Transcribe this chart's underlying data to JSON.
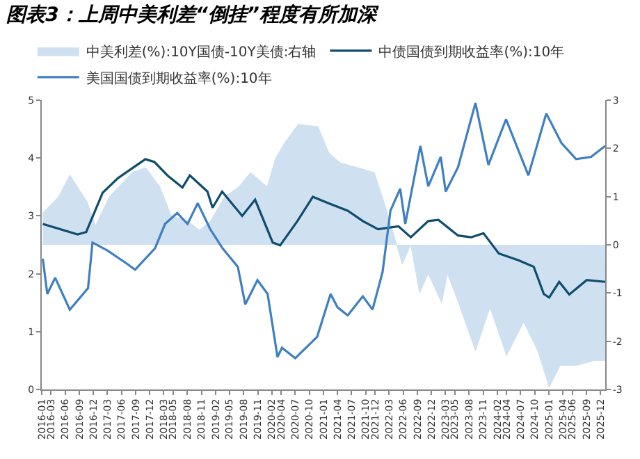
{
  "chart_data": {
    "type": "line",
    "title": "图表3：上周中美利差“倒挂”程度有所加深",
    "series": [
      {
        "name": "中美利差(%):10Y国债-10Y美债:右轴",
        "type": "area",
        "axis": "y2",
        "color": "#cfe0f1",
        "x": [
          "2016-01-08",
          "2016-04-20",
          "2016-07-01",
          "2016-10-20",
          "2016-12-15",
          "2017-03-15",
          "2017-08-10",
          "2017-11-05",
          "2018-02-05",
          "2018-04-20",
          "2018-08-01",
          "2018-10-20",
          "2019-01-01",
          "2019-04-01",
          "2019-07-01",
          "2019-09-15",
          "2020-01-01",
          "2020-02-25",
          "2020-04-20",
          "2020-07-20",
          "2020-11-25",
          "2021-02-05",
          "2021-04-20",
          "2021-08-10",
          "2021-11-25",
          "2022-02-05",
          "2022-04-20",
          "2022-05-25",
          "2022-07-20",
          "2022-09-15",
          "2022-11-10",
          "2023-02-05",
          "2023-03-15",
          "2023-05-25",
          "2023-09-12",
          "2023-12-15",
          "2024-04-01",
          "2024-07-20",
          "2024-10-20",
          "2025-01-02",
          "2025-03-15",
          "2025-07-01",
          "2025-10-20",
          "2025-12-31"
        ],
        "values": [
          0.66,
          1.0,
          1.45,
          0.9,
          0.4,
          1.0,
          1.5,
          1.6,
          1.2,
          0.6,
          0.5,
          0.3,
          0.5,
          1.0,
          1.2,
          1.5,
          1.2,
          1.8,
          2.1,
          2.5,
          2.45,
          1.9,
          1.7,
          1.6,
          1.5,
          0.8,
          0.0,
          -0.4,
          0.0,
          -1.0,
          -0.6,
          -1.2,
          -0.6,
          -1.2,
          -2.2,
          -1.3,
          -2.3,
          -1.6,
          -2.2,
          -2.95,
          -2.5,
          -2.5,
          -2.4,
          -2.4
        ]
      },
      {
        "name": "中债国债到期收益率(%):10年",
        "color": "#0e4d6e",
        "x": [
          "2016-01-08",
          "2016-08-20",
          "2016-10-15",
          "2017-01-30",
          "2017-05-08",
          "2017-11-03",
          "2018-01-01",
          "2018-03-25",
          "2018-07-01",
          "2018-08-18",
          "2018-12-10",
          "2019-01-12",
          "2019-03-15",
          "2019-07-23",
          "2019-10-15",
          "2020-02-06",
          "2020-03-25",
          "2020-07-15",
          "2020-10-23",
          "2021-01-30",
          "2021-06-06",
          "2021-09-12",
          "2021-12-20",
          "2022-05-01",
          "2022-07-20",
          "2022-11-10",
          "2023-01-15",
          "2023-05-22",
          "2023-08-15",
          "2023-11-03",
          "2024-02-10",
          "2024-06-20",
          "2024-09-24",
          "2024-11-28",
          "2025-01-02",
          "2025-03-08",
          "2025-05-12",
          "2025-09-02",
          "2025-12-31"
        ],
        "values": [
          2.86,
          2.68,
          2.72,
          3.4,
          3.65,
          3.98,
          3.93,
          3.7,
          3.49,
          3.7,
          3.42,
          3.14,
          3.42,
          3.0,
          3.28,
          2.54,
          2.49,
          2.91,
          3.33,
          3.22,
          3.09,
          2.91,
          2.77,
          2.82,
          2.63,
          2.91,
          2.93,
          2.66,
          2.63,
          2.7,
          2.35,
          2.23,
          2.12,
          1.65,
          1.59,
          1.86,
          1.64,
          1.89,
          1.86
        ]
      },
      {
        "name": "美国国债到期收益率(%):10年",
        "color": "#3f7fc1",
        "x": [
          "2016-01-08",
          "2016-02-06",
          "2016-03-28",
          "2016-07-01",
          "2016-10-27",
          "2016-11-25",
          "2017-03-03",
          "2017-07-08",
          "2017-08-28",
          "2018-01-04",
          "2018-03-10",
          "2018-05-28",
          "2018-08-03",
          "2018-10-08",
          "2018-12-28",
          "2019-03-18",
          "2019-06-25",
          "2019-08-12",
          "2019-10-30",
          "2020-01-04",
          "2020-03-08",
          "2020-04-06",
          "2020-07-01",
          "2020-11-20",
          "2021-02-15",
          "2021-04-01",
          "2021-06-06",
          "2021-09-12",
          "2021-11-14",
          "2022-01-18",
          "2022-03-10",
          "2022-05-12",
          "2022-06-14",
          "2022-09-20",
          "2022-11-10",
          "2023-01-30",
          "2023-03-03",
          "2023-05-22",
          "2023-09-12",
          "2023-12-05",
          "2024-03-28",
          "2024-08-20",
          "2024-12-14",
          "2025-03-22",
          "2025-06-25",
          "2025-10-01",
          "2025-12-31"
        ],
        "values": [
          2.26,
          1.65,
          1.93,
          1.38,
          1.75,
          2.54,
          2.4,
          2.17,
          2.07,
          2.44,
          2.86,
          3.05,
          2.86,
          3.22,
          2.77,
          2.44,
          2.12,
          1.47,
          1.89,
          1.65,
          0.56,
          0.72,
          0.54,
          0.91,
          1.65,
          1.42,
          1.28,
          1.61,
          1.38,
          2.03,
          3.09,
          3.47,
          2.86,
          4.21,
          3.51,
          4.02,
          3.42,
          3.84,
          4.95,
          3.88,
          4.67,
          3.7,
          4.77,
          4.26,
          3.98,
          4.02,
          4.21
        ]
      }
    ],
    "xlim": [
      "2016-01-01",
      "2025-12-31"
    ],
    "xticks": [
      "2016-01",
      "2016-03",
      "2016-06",
      "2016-09",
      "2016-12",
      "2017-03",
      "2017-06",
      "2017-09",
      "2017-12",
      "2018-03",
      "2018-05",
      "2018-08",
      "2018-11",
      "2019-02",
      "2019-05",
      "2019-08",
      "2019-11",
      "2020-02",
      "2020-04",
      "2020-07",
      "2020-10",
      "2021-01",
      "2021-04",
      "2021-07",
      "2021-10",
      "2021-12",
      "2022-03",
      "2022-06",
      "2022-09",
      "2022-12",
      "2023-03",
      "2023-05",
      "2023-08",
      "2023-11",
      "2024-02",
      "2024-04",
      "2024-07",
      "2024-10",
      "2025-01",
      "2025-04",
      "2025-06",
      "2025-09",
      "2025-12"
    ],
    "ylim": [
      0,
      5
    ],
    "yticks": [
      0,
      1,
      2,
      3,
      4,
      5
    ],
    "y2lim": [
      -3,
      3
    ],
    "y2ticks": [
      -3,
      -2,
      -1,
      0,
      1,
      2,
      3
    ],
    "legend": "top",
    "grid": false,
    "line_style": "solid",
    "marker": "none"
  }
}
